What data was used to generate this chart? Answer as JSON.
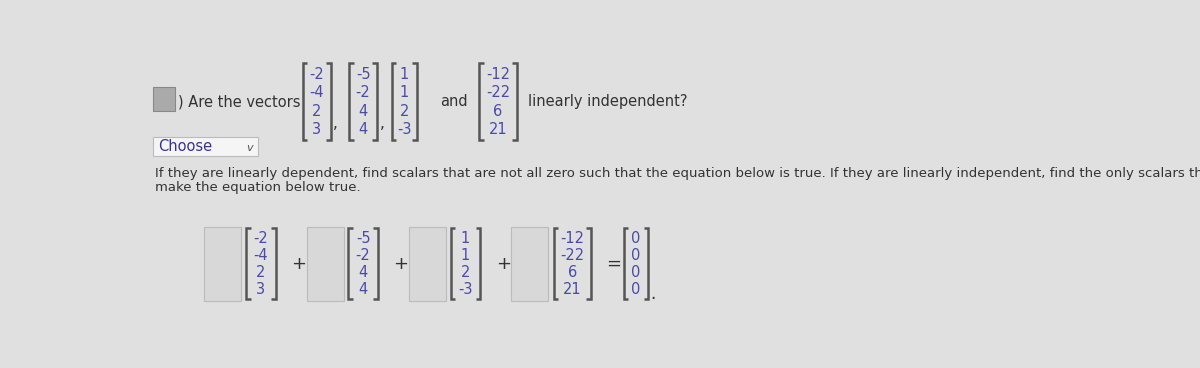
{
  "background_color": "#e0e0e0",
  "top_section": {
    "prefix_text": ") Are the vectors",
    "vector1": [
      "-2",
      "-4",
      "2",
      "3"
    ],
    "vector2": [
      "-5",
      "-2",
      "4",
      "4"
    ],
    "vector3": [
      "1",
      "1",
      "2",
      "-3"
    ],
    "and_text": "and",
    "vector4": [
      "-12",
      "-22",
      "6",
      "21"
    ],
    "suffix_text": "linearly independent?"
  },
  "choose_text": "Choose",
  "middle_text_line1": "If they are linearly dependent, find scalars that are not all zero such that the equation below is true. If they are linearly independent, find the only scalars that will",
  "middle_text_line2": "make the equation below true.",
  "bottom_section": {
    "vector1": [
      "-2",
      "-4",
      "2",
      "3"
    ],
    "vector2": [
      "-5",
      "-2",
      "4",
      "4"
    ],
    "vector3": [
      "1",
      "1",
      "2",
      "-3"
    ],
    "vector4": [
      "-12",
      "-22",
      "6",
      "21"
    ],
    "vector5": [
      "0",
      "0",
      "0",
      "0"
    ]
  },
  "text_color": "#333333",
  "bracket_color": "#555555",
  "number_color": "#4a4aaa",
  "choose_box_color": "#f5f5f5",
  "choose_text_color": "#333399",
  "scalar_box_color": "#d8d8d8"
}
